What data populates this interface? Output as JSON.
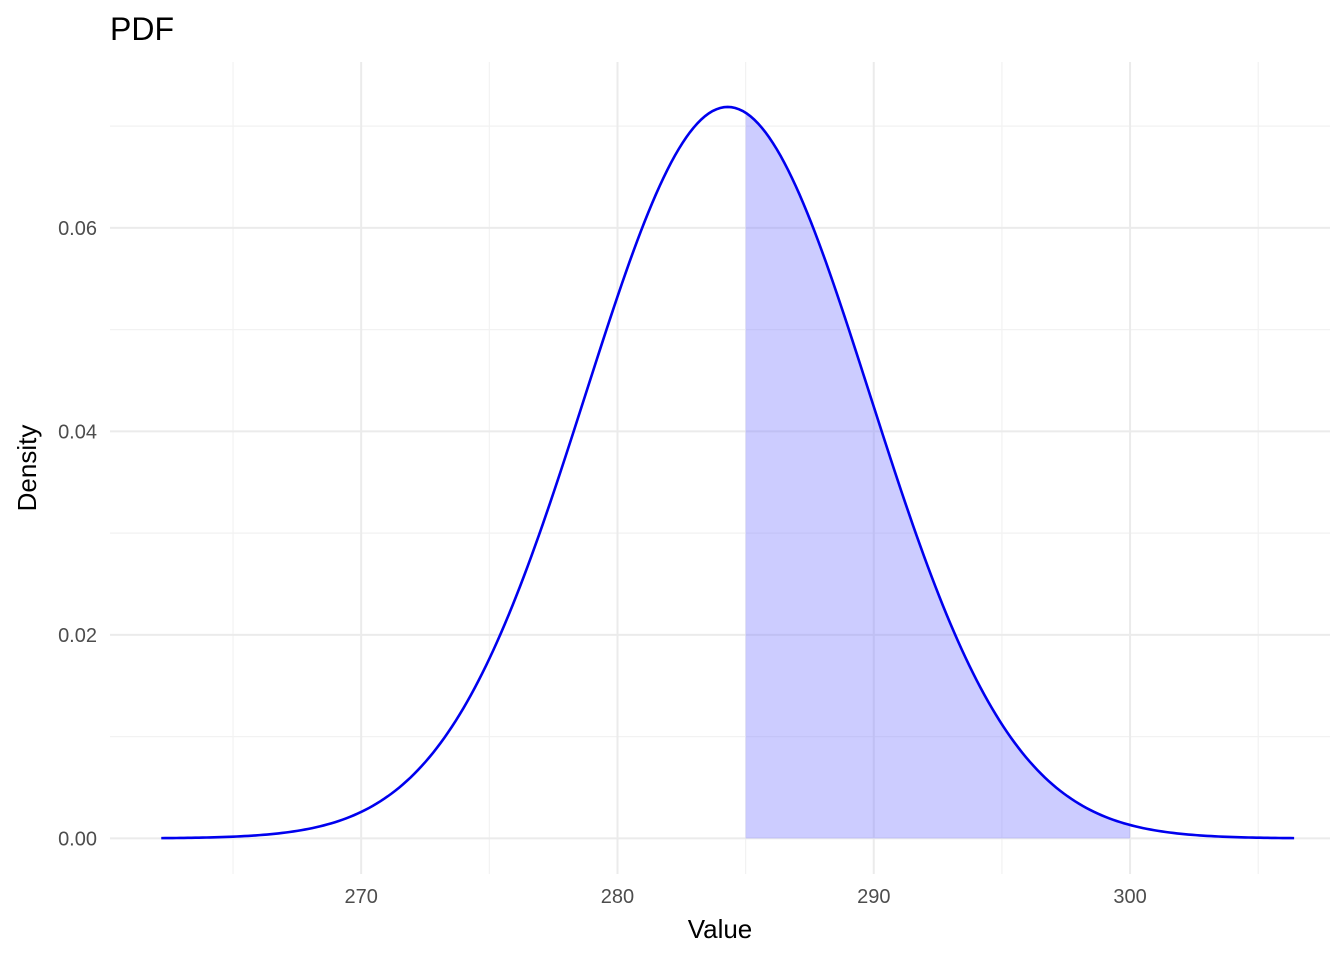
{
  "chart_data": {
    "type": "area",
    "title": "PDF",
    "xlabel": "Value",
    "ylabel": "Density",
    "xlim": [
      260.2,
      307.8
    ],
    "ylim": [
      -0.0035,
      0.0763
    ],
    "x_ticks": [
      270,
      280,
      290,
      300
    ],
    "x_tick_labels": [
      "270",
      "280",
      "290",
      "300"
    ],
    "y_ticks": [
      0.0,
      0.02,
      0.04,
      0.06
    ],
    "y_tick_labels": [
      "0.00",
      "0.02",
      "0.04",
      "0.06"
    ],
    "grid": true,
    "series": [
      {
        "kind": "line",
        "color": "#0000ee",
        "distribution": "normal",
        "mean": 284.3,
        "sd": 5.55,
        "x_range": [
          262.2,
          306.4
        ]
      },
      {
        "kind": "shaded-area",
        "color": "#8080ff",
        "opacity": 0.4,
        "x_range": [
          285.0,
          300.0
        ]
      }
    ]
  }
}
